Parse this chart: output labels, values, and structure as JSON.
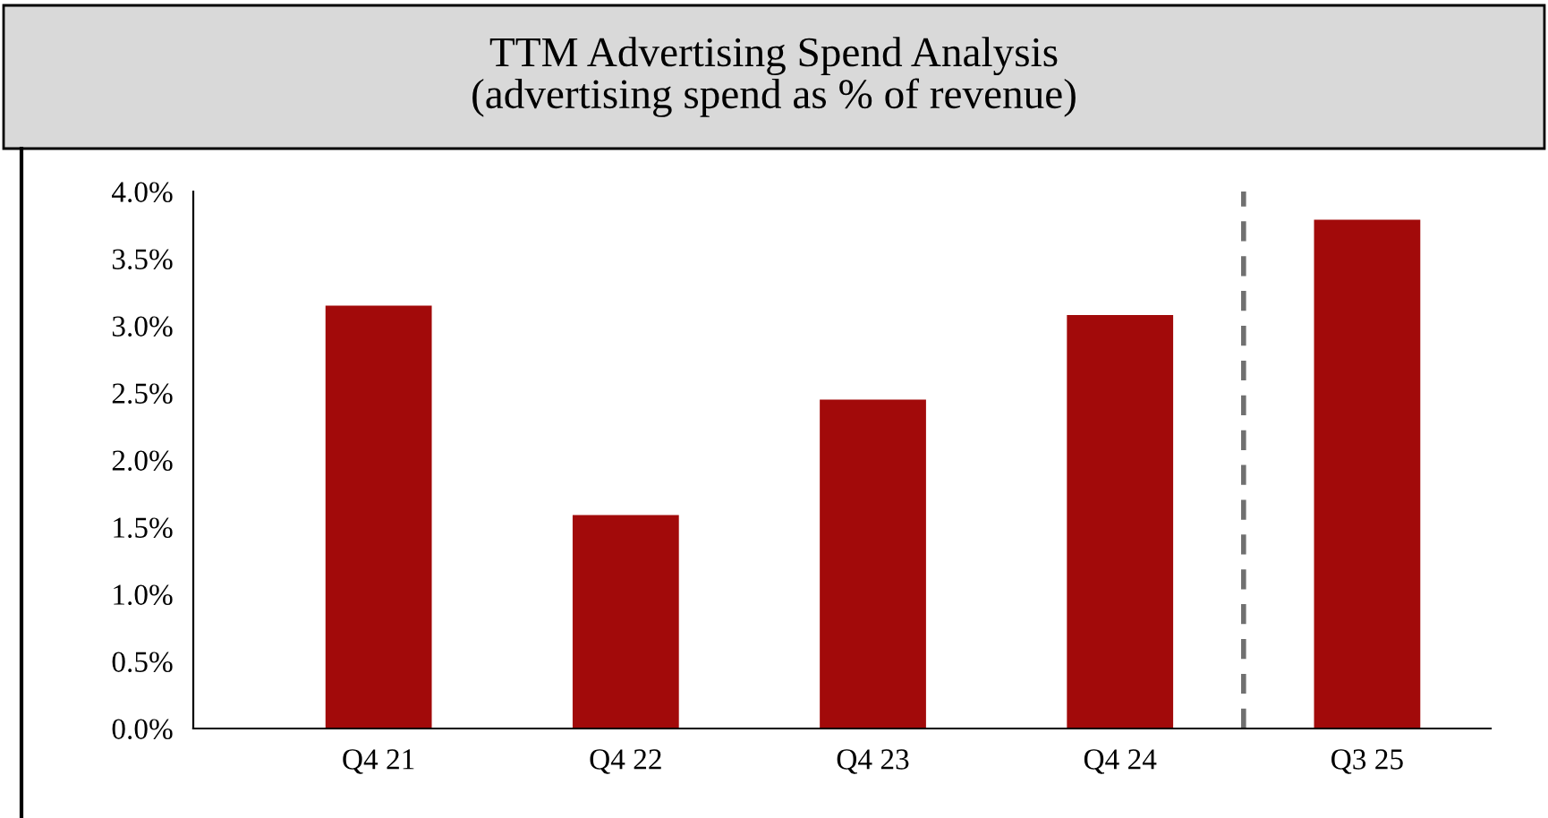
{
  "chart_data": {
    "type": "bar",
    "title": "TTM Advertising Spend Analysis\n(advertising spend as % of revenue)",
    "categories": [
      "Q4 21",
      "Q4 22",
      "Q4 23",
      "Q4 24",
      "Q3 25"
    ],
    "values": [
      3.15,
      1.59,
      2.45,
      3.08,
      3.79
    ],
    "color": "#a20a0a",
    "ylim": [
      0,
      4
    ],
    "yticks": [
      {
        "value": 0,
        "label": "0.0%"
      },
      {
        "value": 0.5,
        "label": "0.5%"
      },
      {
        "value": 1,
        "label": "1.0%"
      },
      {
        "value": 1.5,
        "label": "1.5%"
      },
      {
        "value": 2,
        "label": "2.0%"
      },
      {
        "value": 2.5,
        "label": "2.5%"
      },
      {
        "value": 3,
        "label": "3.0%"
      },
      {
        "value": 3.5,
        "label": "3.5%"
      },
      {
        "value": 4,
        "label": "4.0%"
      }
    ],
    "grid": false
  }
}
